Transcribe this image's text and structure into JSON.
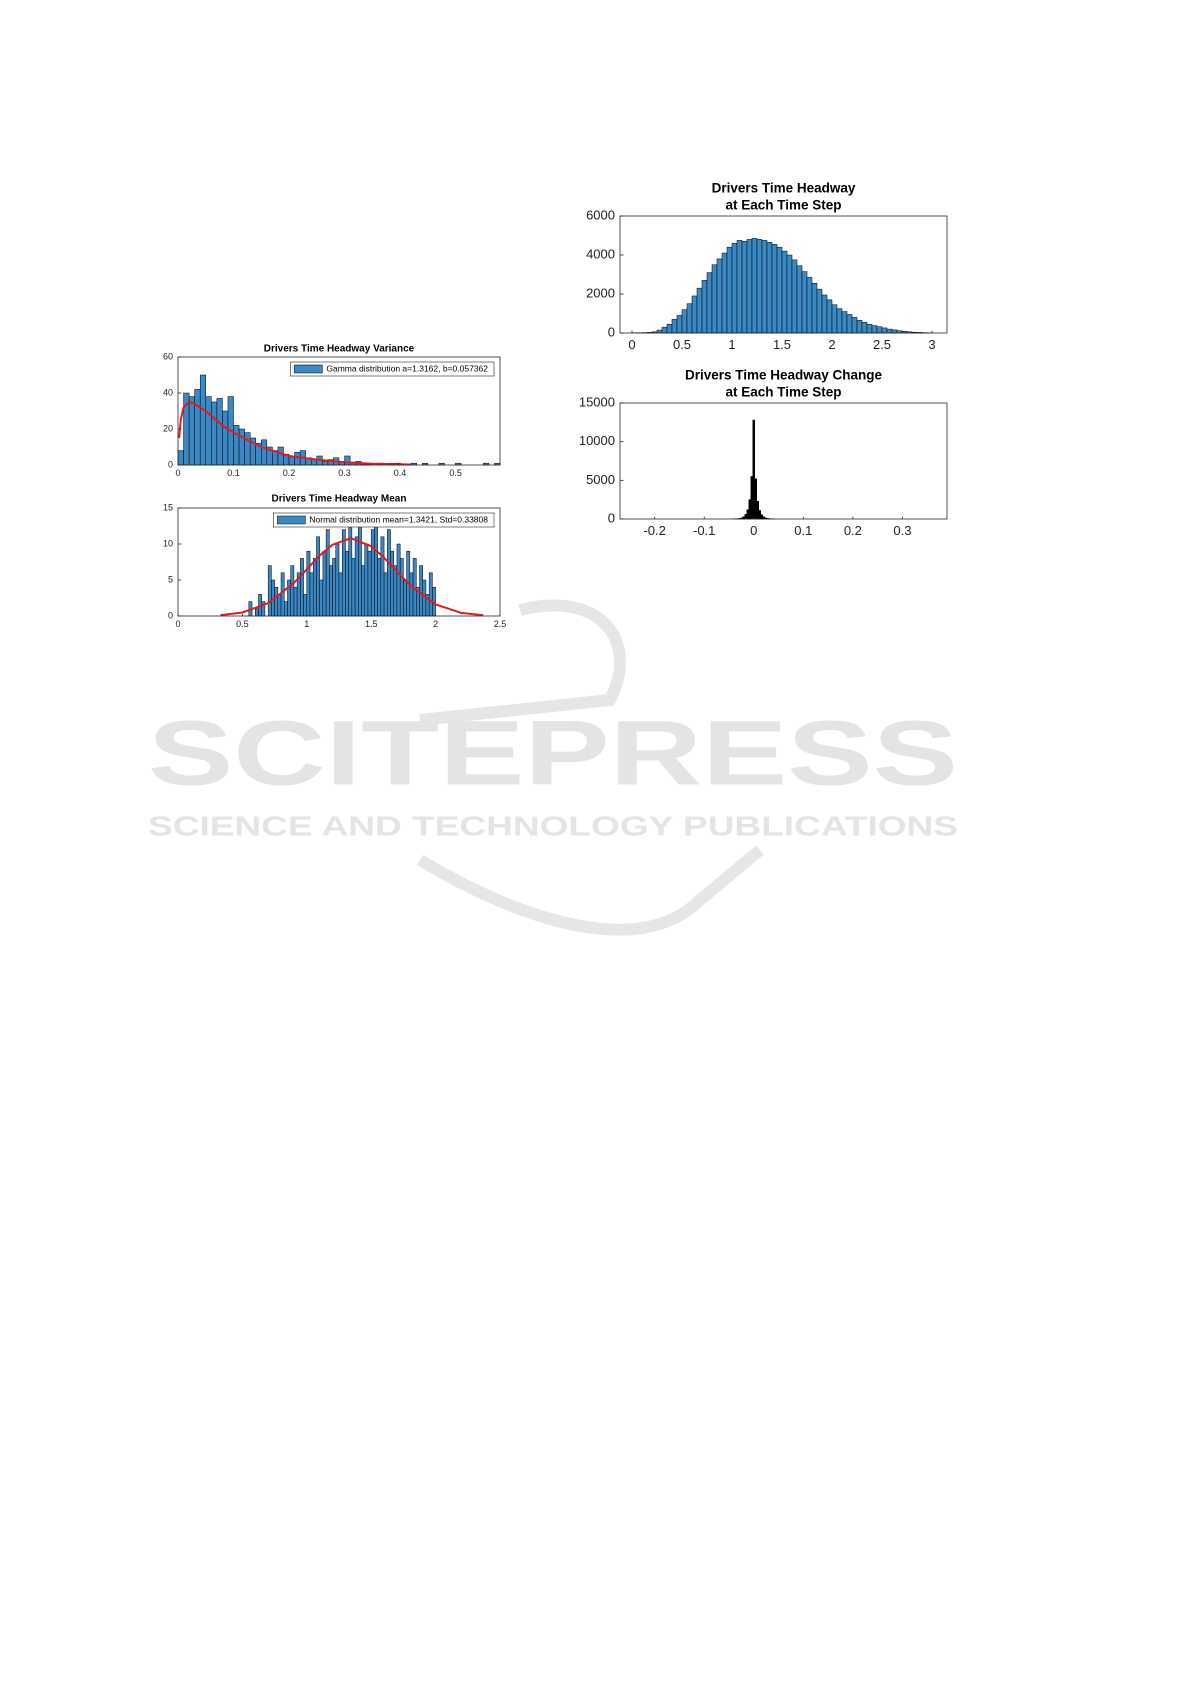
{
  "watermark": {
    "name": "SCITEPRESS",
    "tagline": "SCIENCE AND TECHNOLOGY PUBLICATIONS"
  },
  "chart_data": [
    {
      "type": "histogram",
      "title_lines": [
        "Drivers Time Headway Variance"
      ],
      "bins": [
        0,
        0.01,
        0.02,
        0.03,
        0.04,
        0.05,
        0.06,
        0.07,
        0.08,
        0.09,
        0.1,
        0.11,
        0.12,
        0.13,
        0.14,
        0.15,
        0.16,
        0.17,
        0.18,
        0.19,
        0.2,
        0.21,
        0.22,
        0.23,
        0.24,
        0.25,
        0.26,
        0.27,
        0.28,
        0.29,
        0.3,
        0.31,
        0.32,
        0.33,
        0.34,
        0.35,
        0.36,
        0.37,
        0.38,
        0.39,
        0.4,
        0.41,
        0.42,
        0.43,
        0.44,
        0.45,
        0.46,
        0.47,
        0.48,
        0.49,
        0.5,
        0.51,
        0.52,
        0.53,
        0.54,
        0.55,
        0.56,
        0.57,
        0.58
      ],
      "series": [
        {
          "name": "Gamma distribution a=1.3162, b=0.057362",
          "color": "#3a88c4",
          "values": [
            8,
            40,
            38,
            42,
            50,
            38,
            35,
            37,
            30,
            38,
            22,
            20,
            18,
            15,
            12,
            14,
            10,
            8,
            10,
            6,
            5,
            7,
            8,
            4,
            3,
            5,
            2,
            3,
            4,
            2,
            5,
            1,
            2,
            1,
            1,
            0,
            1,
            0,
            1,
            1,
            0,
            0,
            1,
            0,
            1,
            0,
            0,
            1,
            0,
            0,
            1,
            0,
            0,
            0,
            0,
            1,
            0,
            1
          ]
        }
      ],
      "fit": {
        "color": "#e41a1c",
        "x": [
          0.002,
          0.005,
          0.01,
          0.02,
          0.03,
          0.05,
          0.08,
          0.1,
          0.15,
          0.2,
          0.25,
          0.3,
          0.35,
          0.42
        ],
        "values": [
          15,
          25,
          32,
          35,
          34,
          30,
          22,
          18,
          10,
          5,
          3,
          1.5,
          0.7,
          0.3
        ]
      },
      "xlim": [
        0,
        0.58
      ],
      "ylim": [
        0,
        60
      ],
      "xticks": [
        0,
        0.1,
        0.2,
        0.3,
        0.4,
        0.5
      ],
      "yticks": [
        0,
        20,
        40,
        60
      ]
    },
    {
      "type": "histogram",
      "title_lines": [
        "Drivers Time Headway Mean"
      ],
      "bins": [
        0.55,
        0.575,
        0.6,
        0.625,
        0.65,
        0.675,
        0.7,
        0.725,
        0.75,
        0.775,
        0.8,
        0.825,
        0.85,
        0.875,
        0.9,
        0.925,
        0.95,
        0.975,
        1,
        1.025,
        1.05,
        1.075,
        1.1,
        1.125,
        1.15,
        1.175,
        1.2,
        1.225,
        1.25,
        1.275,
        1.3,
        1.325,
        1.35,
        1.375,
        1.4,
        1.425,
        1.45,
        1.475,
        1.5,
        1.525,
        1.55,
        1.575,
        1.6,
        1.625,
        1.65,
        1.675,
        1.7,
        1.725,
        1.75,
        1.775,
        1.8,
        1.825,
        1.85,
        1.875,
        1.9,
        1.925,
        1.95,
        1.975,
        2
      ],
      "series": [
        {
          "name": "Normal distribution mean=1.3421, Std=0.33808",
          "color": "#3a88c4",
          "values": [
            2,
            0,
            1,
            3,
            2,
            0,
            7,
            5,
            4,
            3,
            6,
            2,
            5,
            7,
            4,
            6,
            8,
            3,
            9,
            6,
            8,
            11,
            5,
            9,
            12,
            7,
            8,
            10,
            6,
            12,
            9,
            13,
            8,
            11,
            13,
            7,
            10,
            9,
            12,
            14,
            8,
            11,
            6,
            12,
            9,
            7,
            10,
            8,
            5,
            9,
            6,
            8,
            4,
            7,
            5,
            3,
            6,
            4
          ]
        }
      ],
      "fit": {
        "color": "#e41a1c",
        "x": [
          0.33,
          0.5,
          0.7,
          0.9,
          1.1,
          1.2,
          1.342,
          1.5,
          1.6,
          1.8,
          2.0,
          2.2,
          2.37
        ],
        "values": [
          0.12,
          0.49,
          1.79,
          4.6,
          8.4,
          9.9,
          10.8,
          9.7,
          8.1,
          4.3,
          1.6,
          0.43,
          0.11
        ]
      },
      "xlim": [
        0,
        2.5
      ],
      "ylim": [
        0,
        15
      ],
      "xticks": [
        0,
        0.5,
        1,
        1.5,
        2,
        2.5
      ],
      "yticks": [
        0,
        5,
        10,
        15
      ]
    },
    {
      "type": "histogram",
      "title_lines": [
        "Drivers Time Headway",
        "at Each Time Step"
      ],
      "bins": [
        0,
        0.05,
        0.1,
        0.15,
        0.2,
        0.25,
        0.3,
        0.35,
        0.4,
        0.45,
        0.5,
        0.55,
        0.6,
        0.65,
        0.7,
        0.75,
        0.8,
        0.85,
        0.9,
        0.95,
        1,
        1.05,
        1.1,
        1.15,
        1.2,
        1.25,
        1.3,
        1.35,
        1.4,
        1.45,
        1.5,
        1.55,
        1.6,
        1.65,
        1.7,
        1.75,
        1.8,
        1.85,
        1.9,
        1.95,
        2,
        2.05,
        2.1,
        2.15,
        2.2,
        2.25,
        2.3,
        2.35,
        2.4,
        2.45,
        2.5,
        2.55,
        2.6,
        2.65,
        2.7,
        2.75,
        2.8,
        2.85,
        2.9,
        2.95,
        3
      ],
      "color": "#3a88c4",
      "values": [
        10,
        15,
        20,
        30,
        60,
        150,
        300,
        450,
        700,
        900,
        1200,
        1500,
        1900,
        2300,
        2700,
        3100,
        3500,
        3800,
        4100,
        4400,
        4600,
        4750,
        4700,
        4800,
        4850,
        4800,
        4750,
        4650,
        4550,
        4400,
        4200,
        4000,
        3750,
        3450,
        3150,
        2850,
        2550,
        2250,
        1950,
        1700,
        1450,
        1250,
        1100,
        950,
        800,
        650,
        550,
        450,
        380,
        320,
        260,
        200,
        160,
        120,
        90,
        60,
        40,
        30,
        20,
        10
      ],
      "xlim": [
        -0.12,
        3.15
      ],
      "ylim": [
        0,
        6000
      ],
      "xticks": [
        0,
        0.5,
        1,
        1.5,
        2,
        2.5,
        3
      ],
      "yticks": [
        0,
        2000,
        4000,
        6000
      ]
    },
    {
      "type": "histogram",
      "title_lines": [
        "Drivers Time Headway Change",
        "at Each Time Step"
      ],
      "bins": [
        -0.042,
        -0.038,
        -0.034,
        -0.03,
        -0.026,
        -0.022,
        -0.018,
        -0.014,
        -0.01,
        -0.006,
        -0.002,
        0.002,
        0.006,
        0.01,
        0.014,
        0.018,
        0.022,
        0.026,
        0.03,
        0.034,
        0.038,
        0.042
      ],
      "color": "#000000",
      "values": [
        20,
        30,
        50,
        80,
        150,
        300,
        600,
        1200,
        2500,
        5500,
        12800,
        5200,
        2300,
        1100,
        550,
        280,
        140,
        80,
        50,
        30,
        20
      ],
      "xlim": [
        -0.27,
        0.39
      ],
      "ylim": [
        0,
        15000
      ],
      "xticks": [
        -0.2,
        -0.1,
        0,
        0.1,
        0.2,
        0.3
      ],
      "yticks": [
        0,
        5000,
        10000,
        15000
      ]
    }
  ]
}
